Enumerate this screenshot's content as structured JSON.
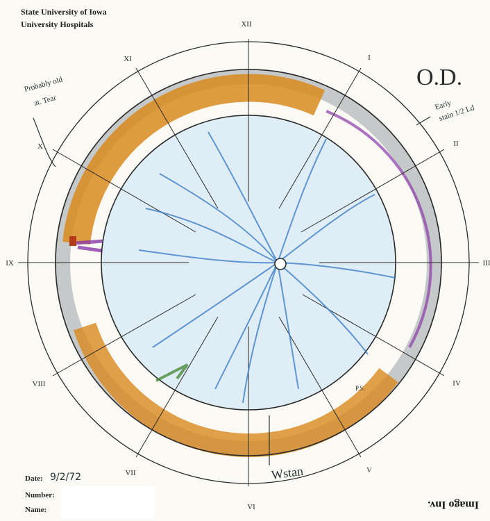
{
  "header": {
    "institution": "State University of Iowa",
    "department": "University Hospitals"
  },
  "eye_label": "O.D.",
  "clock_hours": [
    "XII",
    "I",
    "II",
    "III",
    "IV",
    "V",
    "VI",
    "VII",
    "VIII",
    "IX",
    "X",
    "XI"
  ],
  "form_fields": {
    "date_label": "Date:",
    "date_value": "9/2/72",
    "number_label": "Number:",
    "name_label": "Name:"
  },
  "footer_mirrored": "Imago Inv.",
  "handwritten_notes": {
    "tear_note_line1": "Probably old",
    "tear_note_line2": "at. Tear",
    "stain_note_line1": "Early",
    "stain_note_line2": "stain 1/2 Ld",
    "bottom_note": "Wstan",
    "small_note": "P.S."
  },
  "colors": {
    "ink": "#2a2a2a",
    "vessel_blue": "#3f7fc8",
    "retina_fill": "#dfeef6",
    "detachment_orange": "#d98a1e",
    "purple_marks": "#8a3aa8",
    "green_marks": "#4a8a3a",
    "gray_shading": "#8a8f96"
  }
}
